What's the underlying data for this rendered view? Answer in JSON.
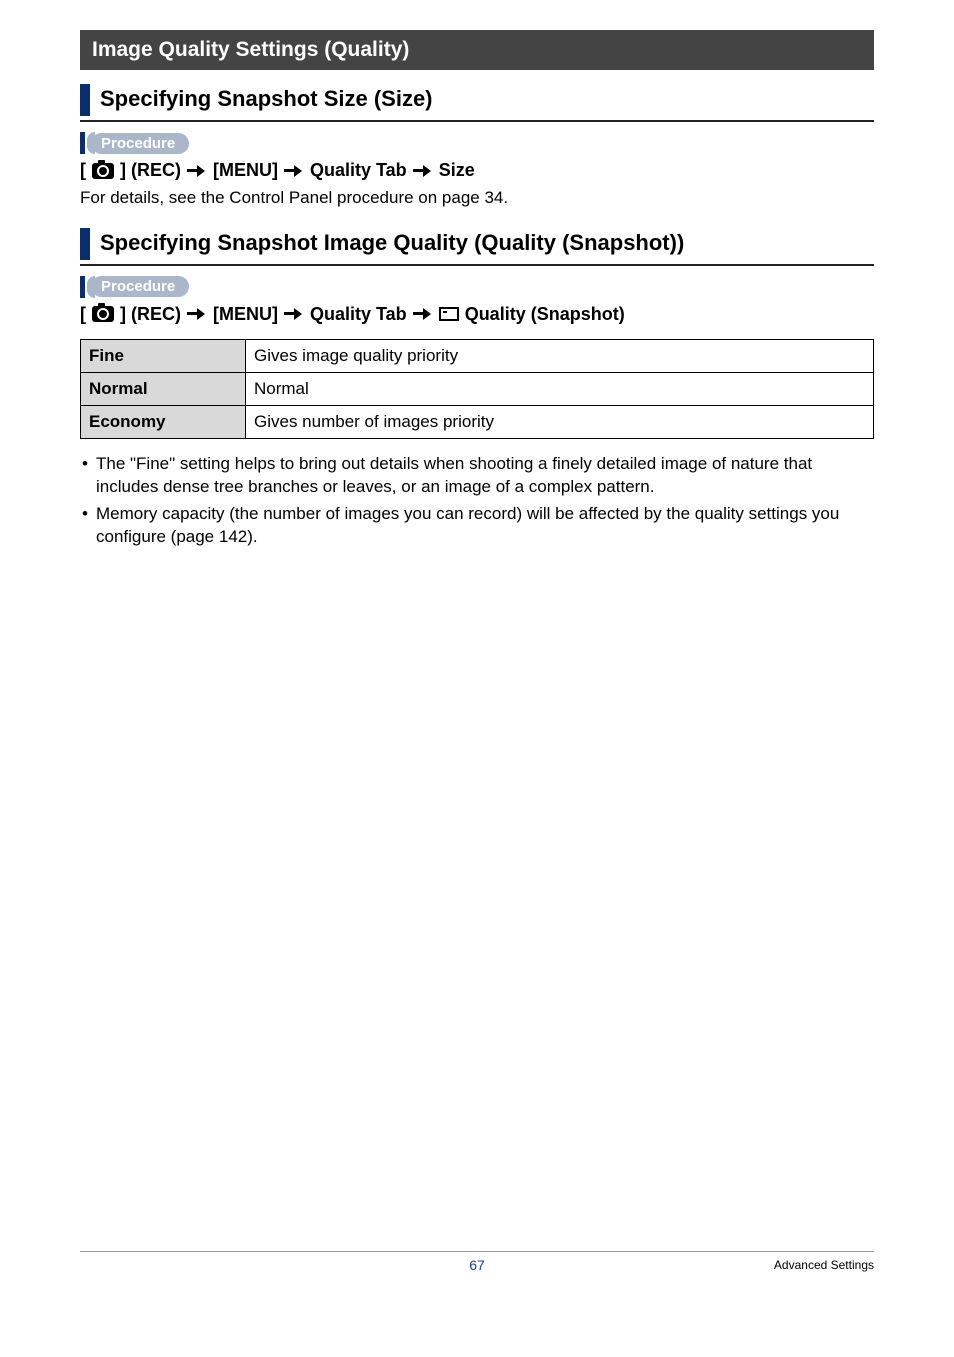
{
  "section": {
    "title": "Image Quality Settings (Quality)"
  },
  "sub1": {
    "title": "Specifying Snapshot Size (Size)",
    "procedure_label": "Procedure",
    "breadcrumb": {
      "p1": "[",
      "p2": "] (REC)",
      "p3": "[MENU]",
      "p4": "Quality Tab",
      "p5": "Size"
    },
    "body": "For details, see the Control Panel procedure on page 34."
  },
  "sub2": {
    "title": "Specifying Snapshot Image Quality (Quality (Snapshot))",
    "procedure_label": "Procedure",
    "breadcrumb": {
      "p1": "[",
      "p2": "] (REC)",
      "p3": "[MENU]",
      "p4": "Quality Tab",
      "p5": "Quality (Snapshot)"
    }
  },
  "table": {
    "rows": [
      {
        "label": "Fine",
        "desc": "Gives image quality priority"
      },
      {
        "label": "Normal",
        "desc": "Normal"
      },
      {
        "label": "Economy",
        "desc": "Gives number of images priority"
      }
    ]
  },
  "notes": {
    "n1": "The \"Fine\" setting helps to bring out details when shooting a finely detailed image of nature that includes dense tree branches or leaves, or an image of a complex pattern.",
    "n2": "Memory capacity (the number of images you can record) will be affected by the quality settings you configure (page 142)."
  },
  "footer": {
    "page": "67",
    "section": "Advanced Settings"
  }
}
